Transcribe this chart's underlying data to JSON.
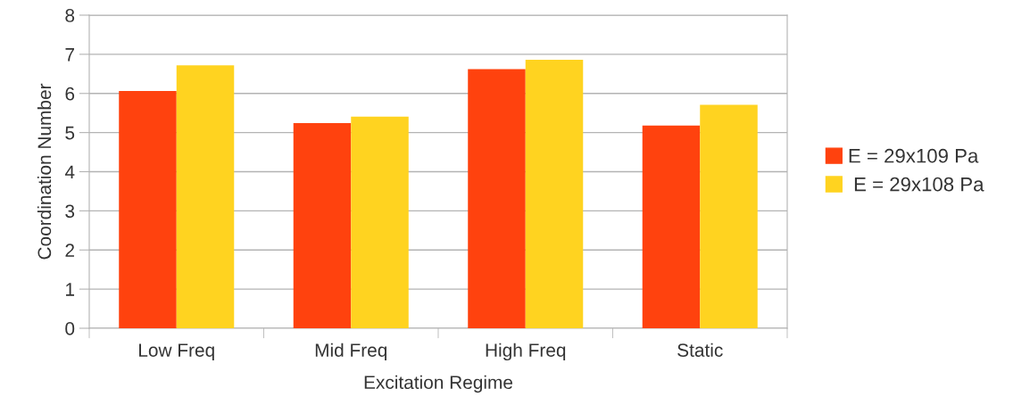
{
  "chart_data": {
    "type": "bar",
    "xlabel": "Excitation Regime",
    "ylabel": "Coordination Number",
    "categories": [
      "Low Freq",
      "Mid Freq",
      "High Freq",
      "Static"
    ],
    "series": [
      {
        "name": "E = 29x109 Pa",
        "color": "#ff420e",
        "values": [
          6.06,
          5.24,
          6.62,
          5.18
        ]
      },
      {
        "name": " E = 29x108 Pa",
        "color": "#ffd320",
        "values": [
          6.72,
          5.41,
          6.86,
          5.71
        ]
      }
    ],
    "ylim": [
      0,
      8
    ],
    "yticks": [
      0,
      1,
      2,
      3,
      4,
      5,
      6,
      7,
      8
    ],
    "grid": "y",
    "legend": "right"
  }
}
